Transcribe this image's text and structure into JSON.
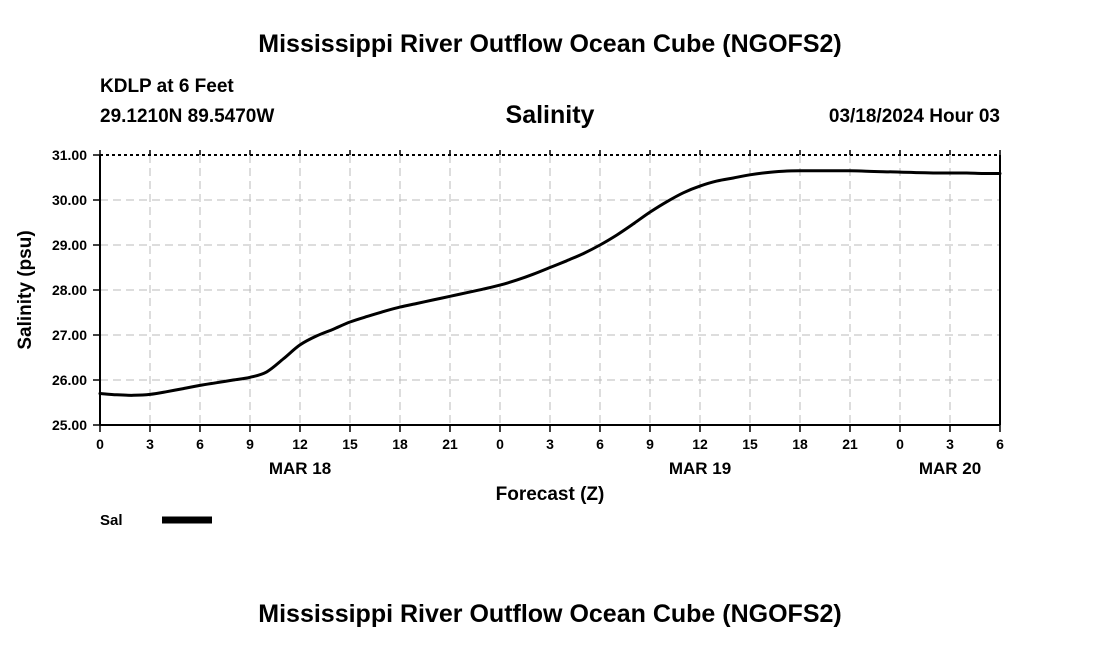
{
  "header": {
    "title": "Mississippi River Outflow Ocean Cube (NGOFS2)",
    "station": "KDLP at 6 Feet",
    "coords": "29.1210N  89.5470W",
    "variable": "Salinity",
    "datetime": "03/18/2024 Hour 03"
  },
  "footer": {
    "title": "Mississippi River Outflow Ocean Cube (NGOFS2)"
  },
  "chart_data": {
    "type": "line",
    "title": "Salinity",
    "xlabel": "Forecast (Z)",
    "ylabel": "Salinity (psu)",
    "ylim": [
      25.0,
      31.0
    ],
    "xlim": [
      0,
      54
    ],
    "grid": true,
    "x_unit": "hours since 03/18/2024 00Z",
    "y_ticks": [
      "25.00",
      "26.00",
      "27.00",
      "28.00",
      "29.00",
      "30.00",
      "31.00"
    ],
    "x_tick_labels": [
      "0",
      "3",
      "6",
      "9",
      "12",
      "15",
      "18",
      "21",
      "0",
      "3",
      "6",
      "9",
      "12",
      "15",
      "18",
      "21",
      "0",
      "3",
      "6"
    ],
    "date_labels": [
      {
        "label": "MAR 18",
        "x": 12
      },
      {
        "label": "MAR 19",
        "x": 36
      },
      {
        "label": "MAR 20",
        "x": 51
      }
    ],
    "legend": {
      "position": "bottom-left",
      "entries": [
        {
          "name": "Sal",
          "color": "#000000"
        }
      ]
    },
    "series": [
      {
        "name": "Sal",
        "color": "#000000",
        "x": [
          0,
          1,
          2,
          3,
          4,
          5,
          6,
          7,
          8,
          9,
          10,
          11,
          12,
          13,
          14,
          15,
          16,
          17,
          18,
          19,
          20,
          21,
          22,
          23,
          24,
          25,
          26,
          27,
          28,
          29,
          30,
          31,
          32,
          33,
          34,
          35,
          36,
          37,
          38,
          39,
          40,
          41,
          42,
          43,
          44,
          45,
          46,
          47,
          48,
          49,
          50,
          51,
          52,
          53,
          54
        ],
        "values": [
          25.7,
          25.67,
          25.66,
          25.68,
          25.74,
          25.81,
          25.88,
          25.94,
          26.0,
          26.06,
          26.18,
          26.47,
          26.78,
          26.98,
          27.13,
          27.29,
          27.41,
          27.52,
          27.62,
          27.7,
          27.78,
          27.86,
          27.94,
          28.02,
          28.11,
          28.22,
          28.35,
          28.5,
          28.65,
          28.81,
          29.0,
          29.22,
          29.47,
          29.73,
          29.96,
          30.16,
          30.31,
          30.42,
          30.49,
          30.56,
          30.61,
          30.64,
          30.65,
          30.65,
          30.65,
          30.65,
          30.64,
          30.63,
          30.62,
          30.61,
          30.6,
          30.6,
          30.6,
          30.59,
          30.59
        ]
      }
    ]
  }
}
